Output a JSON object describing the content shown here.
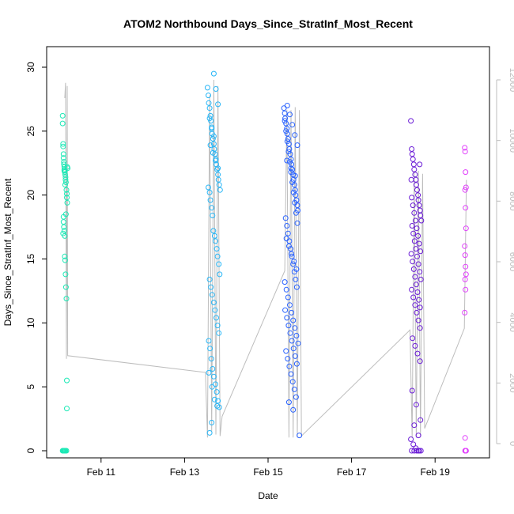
{
  "chart_data": {
    "type": "scatter",
    "title": "ATOM2 Northbound Days_Since_StratInf_Most_Recent",
    "xlabel": "Date",
    "ylabel": "Days_Since_StratInf_Most_Recent",
    "x_ticks": [
      "Feb 11",
      "Feb 13",
      "Feb 15",
      "Feb 17",
      "Feb 19"
    ],
    "x_tick_positions": [
      11,
      13,
      15,
      17,
      19
    ],
    "xlim": [
      10.0,
      20.0
    ],
    "y_ticks": [
      0,
      5,
      10,
      15,
      20,
      25,
      30
    ],
    "ylim": [
      0,
      30
    ],
    "y2_ticks": [
      0,
      2000,
      4000,
      6000,
      8000,
      10000,
      12000
    ],
    "y2lim": [
      0,
      12000
    ],
    "grid": false,
    "legend": "none",
    "series": [
      {
        "color": "#1de9b6",
        "x": [
          10.08,
          10.08,
          10.09,
          10.09,
          10.1,
          10.1,
          10.11,
          10.11,
          10.12,
          10.12,
          10.13,
          10.13,
          10.14,
          10.15,
          10.15,
          10.16,
          10.17,
          10.18,
          10.18,
          10.19,
          10.1,
          10.1,
          10.11,
          10.12,
          10.13,
          10.13,
          10.14,
          10.15,
          10.16,
          10.17,
          10.18,
          10.18,
          10.19,
          10.2,
          10.12,
          10.14,
          10.16,
          10.08,
          10.1,
          10.12,
          10.14,
          10.17,
          10.09,
          10.11,
          10.13,
          10.15,
          10.09
        ],
        "y": [
          26.2,
          25.6,
          24.0,
          23.8,
          23.2,
          22.9,
          22.6,
          22.4,
          22.2,
          22.0,
          21.9,
          21.8,
          21.6,
          21.4,
          21.2,
          21.0,
          20.4,
          20.1,
          19.8,
          19.4,
          18.3,
          17.9,
          17.5,
          17.2,
          16.8,
          15.2,
          14.9,
          13.8,
          12.8,
          11.9,
          5.5,
          3.3,
          22.2,
          22.1,
          21.9,
          20.8,
          18.5,
          0,
          0,
          0,
          0,
          0,
          0,
          0,
          0,
          0,
          17.0
        ]
      },
      {
        "color": "#29b6f6",
        "x": [
          13.55,
          13.57,
          13.58,
          13.6,
          13.62,
          13.63,
          13.65,
          13.66,
          13.68,
          13.7,
          13.71,
          13.73,
          13.75,
          13.76,
          13.78,
          13.8,
          13.81,
          13.83,
          13.85,
          13.57,
          13.6,
          13.62,
          13.65,
          13.67,
          13.69,
          13.72,
          13.74,
          13.77,
          13.79,
          13.82,
          13.84,
          13.6,
          13.63,
          13.66,
          13.7,
          13.73,
          13.76,
          13.79,
          13.82,
          13.58,
          13.61,
          13.64,
          13.67,
          13.7,
          13.74,
          13.77,
          13.8,
          13.83,
          13.6,
          13.65,
          13.7,
          13.75,
          13.8,
          13.6,
          13.65,
          13.7,
          13.62,
          13.68,
          13.74,
          13.8,
          13.58,
          13.66,
          13.72,
          13.78
        ],
        "y": [
          28.4,
          27.8,
          27.2,
          26.8,
          26.2,
          25.8,
          25.2,
          24.8,
          24.4,
          24.0,
          23.6,
          23.2,
          22.8,
          22.4,
          22.0,
          21.6,
          21.2,
          20.8,
          20.4,
          20.6,
          20.2,
          19.6,
          19.0,
          18.4,
          17.2,
          16.8,
          16.4,
          15.8,
          15.2,
          14.6,
          13.8,
          13.4,
          12.8,
          12.2,
          11.6,
          11.0,
          10.4,
          9.8,
          9.2,
          8.6,
          8.0,
          7.2,
          6.4,
          5.8,
          5.2,
          4.6,
          3.9,
          3.4,
          1.4,
          2.2,
          29.5,
          28.3,
          27.1,
          26.0,
          25.3,
          24.6,
          23.9,
          23.3,
          22.7,
          22.1,
          6.1,
          5.0,
          4.0,
          3.5
        ]
      },
      {
        "color": "#2962ff",
        "x": [
          15.38,
          15.4,
          15.41,
          15.43,
          15.45,
          15.46,
          15.48,
          15.5,
          15.51,
          15.53,
          15.55,
          15.56,
          15.58,
          15.6,
          15.61,
          15.63,
          15.65,
          15.66,
          15.68,
          15.7,
          15.71,
          15.4,
          15.43,
          15.46,
          15.49,
          15.52,
          15.55,
          15.58,
          15.61,
          15.64,
          15.67,
          15.7,
          15.42,
          15.45,
          15.48,
          15.51,
          15.54,
          15.57,
          15.6,
          15.63,
          15.66,
          15.69,
          15.4,
          15.44,
          15.48,
          15.52,
          15.56,
          15.6,
          15.64,
          15.68,
          15.72,
          15.41,
          15.45,
          15.49,
          15.53,
          15.57,
          15.61,
          15.65,
          15.69,
          15.43,
          15.47,
          15.51,
          15.55,
          15.59,
          15.63,
          15.67,
          15.44,
          15.5,
          15.56,
          15.62,
          15.68,
          15.46,
          15.52,
          15.58,
          15.64,
          15.7,
          15.45,
          15.55,
          15.65,
          15.5,
          15.6,
          15.75
        ],
        "y": [
          26.8,
          26.4,
          26.0,
          25.6,
          25.2,
          24.8,
          24.4,
          24.0,
          23.6,
          23.2,
          22.8,
          22.4,
          22.0,
          21.6,
          21.2,
          20.8,
          20.4,
          20.0,
          19.6,
          19.2,
          18.8,
          25.8,
          25.0,
          24.2,
          23.4,
          22.6,
          21.8,
          21.0,
          20.2,
          19.4,
          18.6,
          17.8,
          18.2,
          17.6,
          17.0,
          16.4,
          15.8,
          15.2,
          14.6,
          14.0,
          13.4,
          12.8,
          13.2,
          12.6,
          12.0,
          11.4,
          10.8,
          10.2,
          9.6,
          9.0,
          8.4,
          11.0,
          10.4,
          9.8,
          9.2,
          8.6,
          8.0,
          7.4,
          6.8,
          7.8,
          7.2,
          6.6,
          6.0,
          5.4,
          4.8,
          4.2,
          16.6,
          16.0,
          15.4,
          14.8,
          14.2,
          27.0,
          26.3,
          25.5,
          24.7,
          23.9,
          22.7,
          22.1,
          21.5,
          3.8,
          3.2,
          1.2
        ]
      },
      {
        "color": "#6a1bd6",
        "x": [
          18.42,
          18.44,
          18.45,
          18.47,
          18.49,
          18.5,
          18.52,
          18.54,
          18.55,
          18.57,
          18.59,
          18.6,
          18.62,
          18.64,
          18.65,
          18.67,
          18.44,
          18.47,
          18.5,
          18.53,
          18.56,
          18.59,
          18.62,
          18.65,
          18.45,
          18.48,
          18.51,
          18.54,
          18.57,
          18.6,
          18.63,
          18.66,
          18.43,
          18.46,
          18.49,
          18.52,
          18.55,
          18.58,
          18.61,
          18.64,
          18.44,
          18.48,
          18.52,
          18.56,
          18.6,
          18.64,
          18.46,
          18.52,
          18.58,
          18.64,
          18.45,
          18.55,
          18.65,
          18.5,
          18.6,
          18.42,
          18.48,
          18.54,
          18.6,
          18.66,
          18.44,
          18.5,
          18.56,
          18.62,
          18.43,
          18.63
        ],
        "y": [
          25.8,
          23.6,
          23.2,
          22.8,
          22.4,
          22.0,
          21.6,
          21.2,
          20.8,
          20.4,
          20.0,
          19.6,
          19.2,
          18.8,
          18.4,
          18.0,
          19.8,
          19.2,
          18.6,
          18.0,
          17.4,
          16.8,
          16.2,
          15.6,
          17.6,
          17.0,
          16.4,
          15.8,
          15.2,
          14.6,
          14.0,
          13.4,
          15.4,
          14.8,
          14.2,
          13.6,
          13.0,
          12.4,
          11.8,
          11.2,
          12.6,
          12.0,
          11.4,
          10.8,
          10.2,
          9.6,
          8.8,
          8.2,
          7.6,
          7.0,
          4.7,
          3.6,
          2.4,
          2.0,
          1.2,
          0.9,
          0.5,
          0.2,
          0,
          0,
          0,
          0,
          0,
          0,
          21.2,
          22.4
        ]
      },
      {
        "color": "#e040fb",
        "x": [
          19.71,
          19.72,
          19.73,
          19.74,
          19.72,
          19.73,
          19.74,
          19.71,
          19.72,
          19.73,
          19.74,
          19.72,
          19.73,
          19.71,
          19.72,
          19.73,
          19.74,
          19.72,
          19.73,
          19.74
        ],
        "y": [
          23.7,
          23.4,
          21.8,
          20.6,
          20.4,
          19.0,
          17.4,
          16.0,
          15.3,
          14.4,
          13.8,
          13.4,
          12.6,
          10.8,
          1.0,
          0,
          0,
          0,
          0,
          0
        ]
      }
    ],
    "line_series": {
      "color": "#bdbdbd",
      "x": [
        10.13,
        10.15,
        10.17,
        10.19,
        10.2,
        13.5,
        13.55,
        13.6,
        13.65,
        13.7,
        13.75,
        13.8,
        13.85,
        13.9,
        15.4,
        15.45,
        15.5,
        15.55,
        15.6,
        15.65,
        15.7,
        15.75,
        15.8,
        18.4,
        18.45,
        18.5,
        18.55,
        18.6,
        18.65,
        18.7,
        18.75,
        19.7,
        19.75
      ],
      "y2": [
        11400,
        11900,
        2800,
        11800,
        2900,
        2350,
        200,
        11500,
        400,
        12000,
        300,
        11800,
        250,
        900,
        5700,
        11000,
        200,
        11000,
        200,
        11100,
        200,
        11000,
        250,
        3750,
        200,
        9000,
        200,
        9000,
        250,
        8900,
        500,
        3800,
        8700
      ]
    }
  }
}
